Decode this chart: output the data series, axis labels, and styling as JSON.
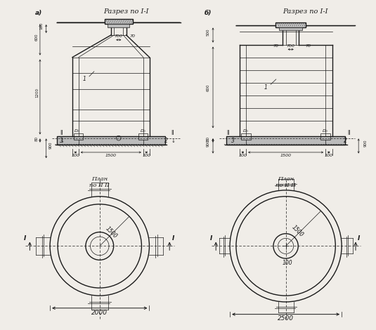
{
  "bg_color": "#f0ede8",
  "line_color": "#1a1a1a",
  "title_a": "Разрез по I-I",
  "title_b": "Разрез по I-I",
  "plan_a": "План\nпо II II",
  "plan_b": "План\nпо II II",
  "label_a": "а)",
  "label_b": "б)",
  "dim_2000": "2000",
  "dim_2500": "2500"
}
